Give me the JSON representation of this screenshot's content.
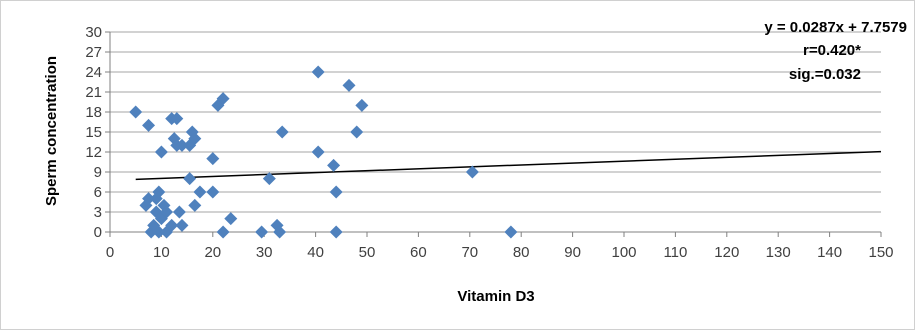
{
  "chart_data": {
    "type": "scatter",
    "xlabel": "Vitamin D3",
    "ylabel": "Sperm concentration",
    "xlim": [
      0,
      150
    ],
    "ylim": [
      0,
      30
    ],
    "x_ticks": [
      "0",
      "10",
      "20",
      "30",
      "40",
      "50",
      "60",
      "70",
      "80",
      "90",
      "100",
      "110",
      "120",
      "130",
      "140",
      "150"
    ],
    "y_ticks": [
      "0",
      "3",
      "6",
      "9",
      "12",
      "15",
      "18",
      "21",
      "24",
      "27",
      "30"
    ],
    "grid": "horizontal",
    "marker_color": "#4f81bd",
    "trendline_color": "#000000",
    "trendline": {
      "slope": 0.0287,
      "intercept": 7.7579,
      "x_range": [
        5,
        150
      ]
    },
    "annotations": [
      "y = 0.0287x + 7.7579",
      "r=0.420*",
      "sig.=0.032"
    ],
    "points": [
      {
        "x": 5,
        "y": 18
      },
      {
        "x": 7.5,
        "y": 16
      },
      {
        "x": 7,
        "y": 4
      },
      {
        "x": 7.5,
        "y": 5
      },
      {
        "x": 8,
        "y": 0
      },
      {
        "x": 8.5,
        "y": 1
      },
      {
        "x": 9,
        "y": 3
      },
      {
        "x": 9,
        "y": 5
      },
      {
        "x": 9.5,
        "y": 6
      },
      {
        "x": 9.5,
        "y": 0
      },
      {
        "x": 10,
        "y": 2
      },
      {
        "x": 10,
        "y": 12
      },
      {
        "x": 10.5,
        "y": 4
      },
      {
        "x": 11,
        "y": 0
      },
      {
        "x": 11,
        "y": 3
      },
      {
        "x": 12,
        "y": 1
      },
      {
        "x": 12,
        "y": 17
      },
      {
        "x": 12.5,
        "y": 14
      },
      {
        "x": 13,
        "y": 17
      },
      {
        "x": 13,
        "y": 13
      },
      {
        "x": 13.5,
        "y": 3
      },
      {
        "x": 14,
        "y": 13
      },
      {
        "x": 14,
        "y": 1
      },
      {
        "x": 15.5,
        "y": 8
      },
      {
        "x": 15.5,
        "y": 13
      },
      {
        "x": 16,
        "y": 15
      },
      {
        "x": 16.5,
        "y": 14
      },
      {
        "x": 16.5,
        "y": 4
      },
      {
        "x": 17.5,
        "y": 6
      },
      {
        "x": 20,
        "y": 11
      },
      {
        "x": 20,
        "y": 6
      },
      {
        "x": 21,
        "y": 19
      },
      {
        "x": 22,
        "y": 0
      },
      {
        "x": 22,
        "y": 20
      },
      {
        "x": 23.5,
        "y": 2
      },
      {
        "x": 29.5,
        "y": 0
      },
      {
        "x": 31,
        "y": 8
      },
      {
        "x": 32.5,
        "y": 1
      },
      {
        "x": 33,
        "y": 0
      },
      {
        "x": 33.5,
        "y": 15
      },
      {
        "x": 40.5,
        "y": 24
      },
      {
        "x": 40.5,
        "y": 12
      },
      {
        "x": 43.5,
        "y": 10
      },
      {
        "x": 44,
        "y": 6
      },
      {
        "x": 44,
        "y": 0
      },
      {
        "x": 46.5,
        "y": 22
      },
      {
        "x": 48,
        "y": 15
      },
      {
        "x": 49,
        "y": 19
      },
      {
        "x": 70.5,
        "y": 9
      },
      {
        "x": 78,
        "y": 0
      }
    ]
  }
}
